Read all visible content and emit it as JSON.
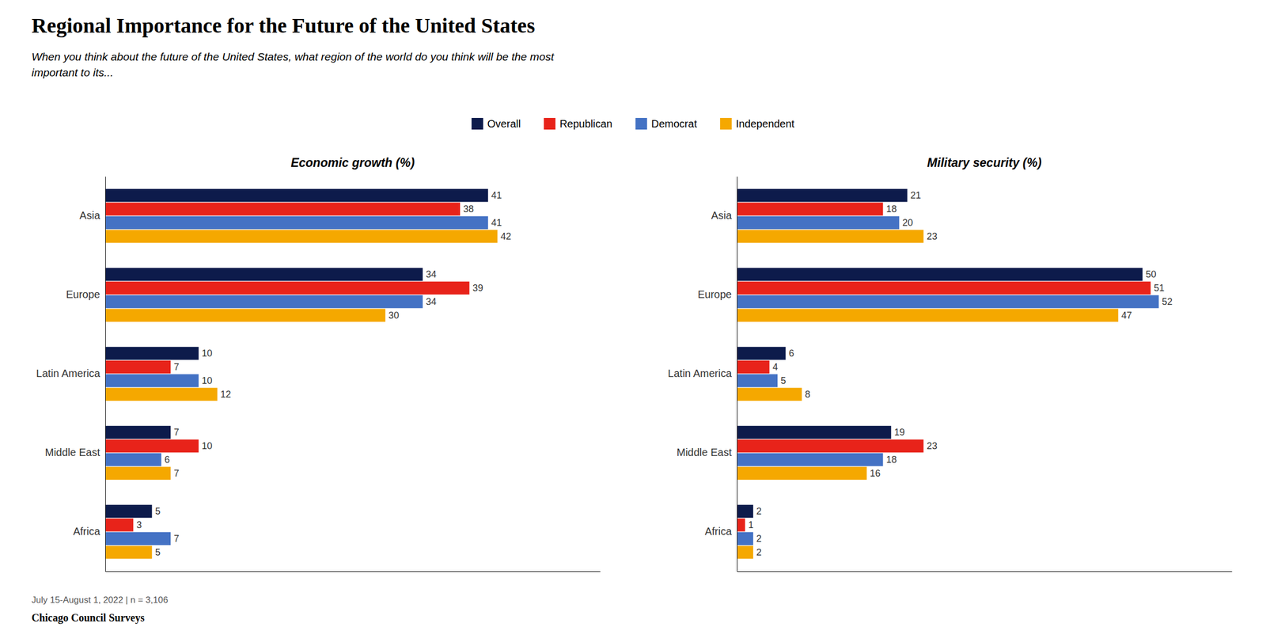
{
  "title": "Regional Importance for the Future of the United States",
  "subtitle": "When you think about the future of the United States, what region of the world do you think will be the most\nimportant to its...",
  "annotations": [
    "July 15-August 1, 2022 | n = 3,106",
    "Chicago Council Surveys"
  ],
  "chart_data": [
    {
      "type": "bar",
      "orientation": "horizontal",
      "title": "Economic growth (%)",
      "categories": [
        "Asia",
        "Europe",
        "Latin America",
        "Middle East",
        "Africa"
      ],
      "series": [
        {
          "name": "Overall",
          "color": "#0d1b4b",
          "values": [
            41,
            34,
            10,
            7,
            5
          ]
        },
        {
          "name": "Republican",
          "color": "#e8231a",
          "values": [
            38,
            39,
            7,
            10,
            3
          ]
        },
        {
          "name": "Democrat",
          "color": "#4472c4",
          "values": [
            41,
            34,
            10,
            6,
            7
          ]
        },
        {
          "name": "Independent",
          "color": "#f5a800",
          "values": [
            42,
            30,
            12,
            7,
            5
          ]
        }
      ],
      "xlim": [
        0,
        53
      ],
      "grid": false,
      "data_labels": true,
      "tick_labels": "y",
      "legend": "top"
    },
    {
      "type": "bar",
      "orientation": "horizontal",
      "title": "Military security (%)",
      "categories": [
        "Asia",
        "Europe",
        "Latin America",
        "Middle East",
        "Africa"
      ],
      "series": [
        {
          "name": "Overall",
          "color": "#0d1b4b",
          "values": [
            21,
            50,
            6,
            19,
            2
          ]
        },
        {
          "name": "Republican",
          "color": "#e8231a",
          "values": [
            18,
            51,
            4,
            23,
            1
          ]
        },
        {
          "name": "Democrat",
          "color": "#4472c4",
          "values": [
            20,
            52,
            5,
            18,
            2
          ]
        },
        {
          "name": "Independent",
          "color": "#f5a800",
          "values": [
            23,
            47,
            8,
            16,
            2
          ]
        }
      ],
      "xlim": [
        0,
        61
      ],
      "grid": false,
      "data_labels": true,
      "tick_labels": "y"
    }
  ]
}
